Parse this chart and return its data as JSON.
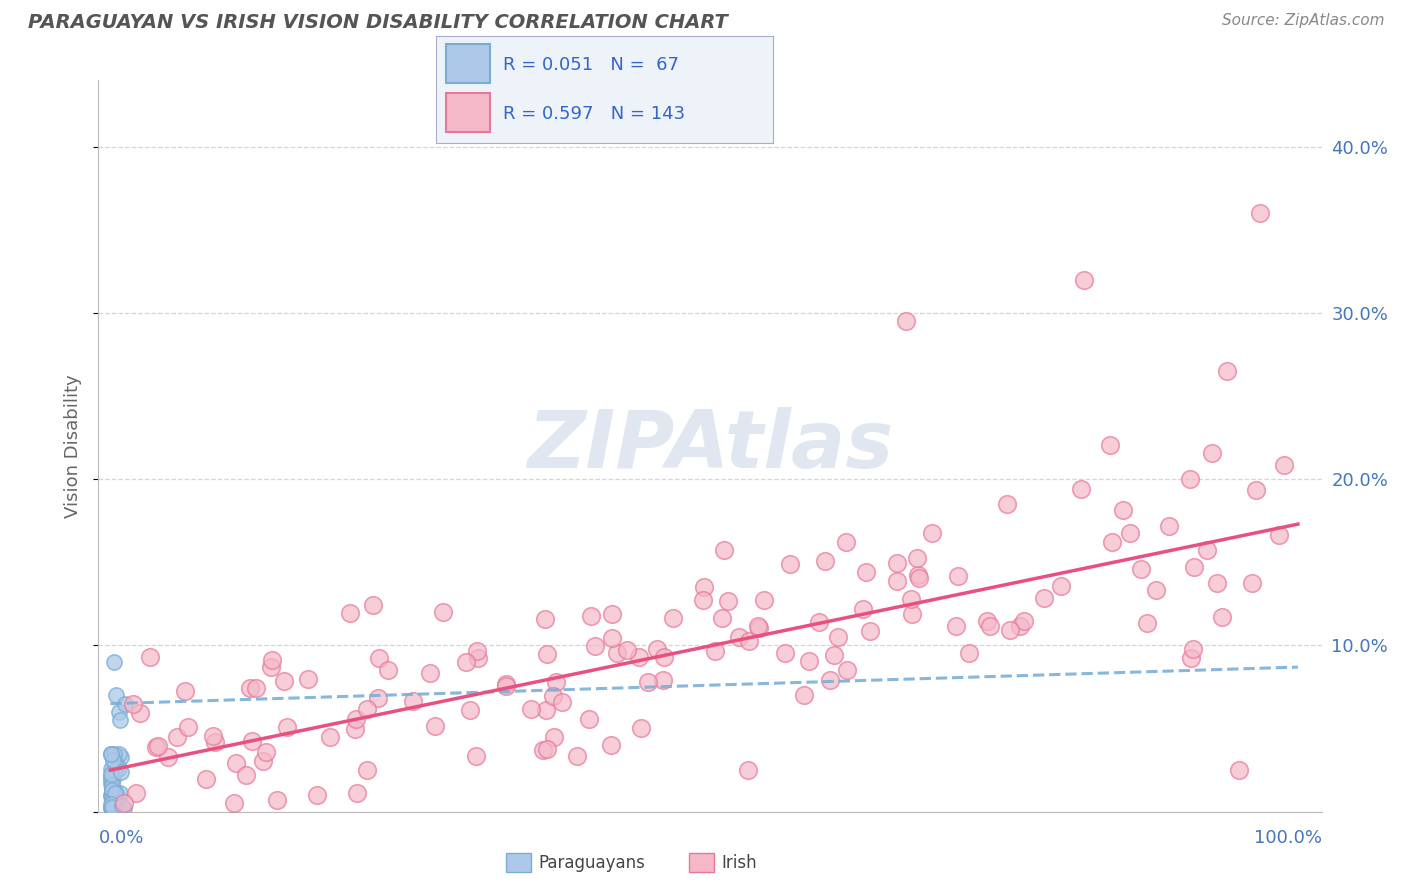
{
  "title": "PARAGUAYAN VS IRISH VISION DISABILITY CORRELATION CHART",
  "source": "Source: ZipAtlas.com",
  "ylabel": "Vision Disability",
  "xlim": [
    -0.01,
    1.02
  ],
  "ylim": [
    0.0,
    0.44
  ],
  "yticks": [
    0.0,
    0.1,
    0.2,
    0.3,
    0.4
  ],
  "ytick_labels": [
    "",
    "10.0%",
    "20.0%",
    "30.0%",
    "40.0%"
  ],
  "paraguayan_R": 0.051,
  "paraguayan_N": 67,
  "irish_R": 0.597,
  "irish_N": 143,
  "paraguayan_scatter_color": "#adc8e8",
  "paraguayan_edge_color": "#7aadd4",
  "irish_scatter_color": "#f5b8c8",
  "irish_edge_color": "#e8789a",
  "paraguayan_line_color": "#7ab0d8",
  "irish_line_color": "#e85080",
  "background_color": "#ffffff",
  "grid_color": "#cccccc",
  "watermark_color": "#ccd8e8",
  "title_color": "#555555",
  "source_color": "#888888",
  "axis_label_color": "#4477bb",
  "ylabel_color": "#666666",
  "legend_bg_color": "#eef3fa",
  "legend_text_color": "#3366cc"
}
